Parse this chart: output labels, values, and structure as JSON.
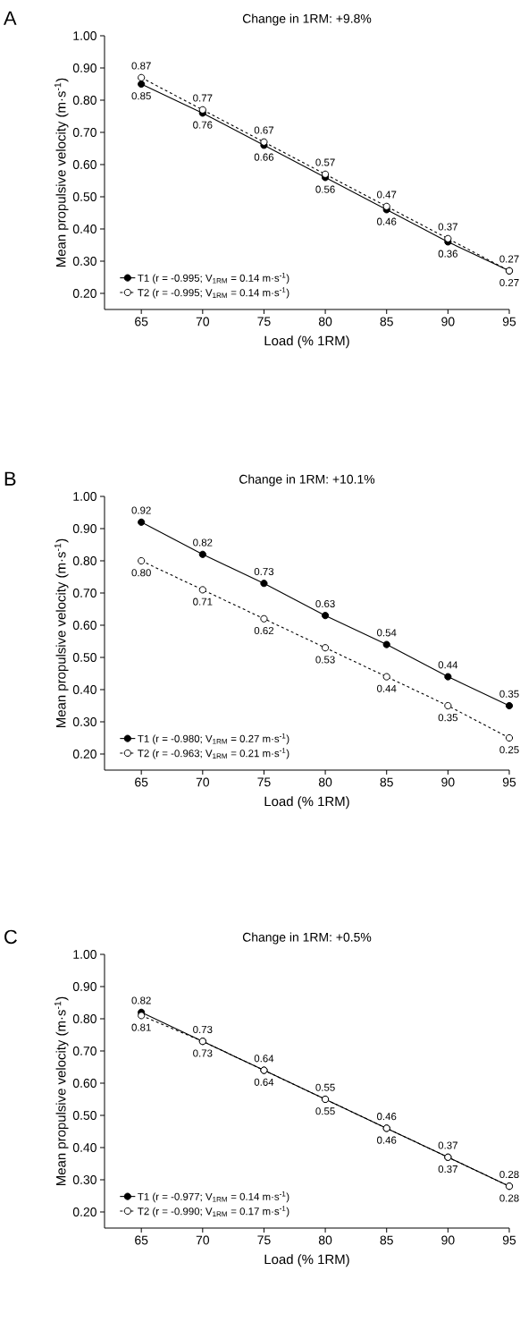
{
  "chart_data": [
    {
      "type": "line",
      "title": "Change in 1RM: +9.8%",
      "annotations": [
        "A"
      ],
      "xlabel": "Load (% 1RM)",
      "ylabel": "Mean propulsive velocity (m·s$^{-1}$)",
      "x": [
        65,
        70,
        75,
        80,
        85,
        90,
        95
      ],
      "xlim": [
        62,
        95
      ],
      "ylim": [
        0.15,
        1.0
      ],
      "xticks": [
        65,
        70,
        75,
        80,
        85,
        90,
        95
      ],
      "yticks": [
        {
          "value": 0.2,
          "label": "0.20"
        },
        {
          "value": 0.3,
          "label": "0.30"
        },
        {
          "value": 0.4,
          "label": "0.40"
        },
        {
          "value": 0.5,
          "label": "0.50"
        },
        {
          "value": 0.6,
          "label": "0.60"
        },
        {
          "value": 0.7,
          "label": "0.70"
        },
        {
          "value": 0.8,
          "label": "0.80"
        },
        {
          "value": 0.9,
          "label": "0.90"
        },
        {
          "value": 1.0,
          "label": "1.00"
        }
      ],
      "legend": "bottom left",
      "marker": "circle",
      "series": [
        {
          "name": "T1 (r = -0.995; V$_{1RM}$ = 0.14 m·s$^{-1}$)",
          "color": "#000000",
          "line_style": "solid",
          "values": [
            0.85,
            0.76,
            0.66,
            0.56,
            0.46,
            0.36,
            0.27
          ],
          "value_labels": [
            "0.85",
            "0.76",
            "0.66",
            "0.56",
            "0.46",
            "0.36",
            "0.27"
          ]
        },
        {
          "name": "T2 (r = -0.995; V$_{1RM}$ = 0.14 m·s$^{-1}$)",
          "color": "#000000",
          "line_style": "dashed",
          "values": [
            0.87,
            0.77,
            0.67,
            0.57,
            0.47,
            0.37,
            0.27
          ],
          "value_labels": [
            "0.87",
            "0.77",
            "0.67",
            "0.57",
            "0.47",
            "0.37",
            "0.27"
          ]
        }
      ]
    },
    {
      "type": "line",
      "title": "Change in 1RM: +10.1%",
      "annotations": [
        "B"
      ],
      "xlabel": "Load (% 1RM)",
      "ylabel": "Mean propulsive velocity (m·s$^{-1}$)",
      "x": [
        65,
        70,
        75,
        80,
        85,
        90,
        95
      ],
      "xlim": [
        62,
        95
      ],
      "ylim": [
        0.15,
        1.0
      ],
      "xticks": [
        65,
        70,
        75,
        80,
        85,
        90,
        95
      ],
      "yticks": [
        {
          "value": 0.2,
          "label": "0.20"
        },
        {
          "value": 0.3,
          "label": "0.30"
        },
        {
          "value": 0.4,
          "label": "0.40"
        },
        {
          "value": 0.5,
          "label": "0.50"
        },
        {
          "value": 0.6,
          "label": "0.60"
        },
        {
          "value": 0.7,
          "label": "0.70"
        },
        {
          "value": 0.8,
          "label": "0.80"
        },
        {
          "value": 0.9,
          "label": "0.90"
        },
        {
          "value": 1.0,
          "label": "1.00"
        }
      ],
      "legend": "bottom left",
      "marker": "circle",
      "series": [
        {
          "name": "T1 (r = -0.980; V$_{1RM}$ = 0.27 m·s$^{-1}$)",
          "color": "#000000",
          "line_style": "solid",
          "values": [
            0.92,
            0.82,
            0.73,
            0.63,
            0.54,
            0.44,
            0.35
          ],
          "value_labels": [
            "0.92",
            "0.82",
            "0.73",
            "0.63",
            "0.54",
            "0.44",
            "0.35"
          ]
        },
        {
          "name": "T2 (r = -0.963; V$_{1RM}$ = 0.21 m·s$^{-1}$)",
          "color": "#000000",
          "line_style": "dashed",
          "values": [
            0.8,
            0.71,
            0.62,
            0.53,
            0.44,
            0.35,
            0.25
          ],
          "value_labels": [
            "0.80",
            "0.71",
            "0.62",
            "0.53",
            "0.44",
            "0.35",
            "0.25"
          ]
        }
      ]
    },
    {
      "type": "line",
      "title": "Change in 1RM: +0.5%",
      "annotations": [
        "C"
      ],
      "xlabel": "Load (% 1RM)",
      "ylabel": "Mean propulsive velocity (m·s$^{-1}$)",
      "x": [
        65,
        70,
        75,
        80,
        85,
        90,
        95
      ],
      "xlim": [
        62,
        95
      ],
      "ylim": [
        0.15,
        1.0
      ],
      "xticks": [
        65,
        70,
        75,
        80,
        85,
        90,
        95
      ],
      "yticks": [
        {
          "value": 0.2,
          "label": "0.20"
        },
        {
          "value": 0.3,
          "label": "0.30"
        },
        {
          "value": 0.4,
          "label": "0.40"
        },
        {
          "value": 0.5,
          "label": "0.50"
        },
        {
          "value": 0.6,
          "label": "0.60"
        },
        {
          "value": 0.7,
          "label": "0.70"
        },
        {
          "value": 0.8,
          "label": "0.80"
        },
        {
          "value": 0.9,
          "label": "0.90"
        },
        {
          "value": 1.0,
          "label": "1.00"
        }
      ],
      "legend": "bottom left",
      "marker": "circle",
      "series": [
        {
          "name": "T1 (r = -0.977; V$_{1RM}$ = 0.14 m·s$^{-1}$)",
          "color": "#000000",
          "line_style": "solid",
          "values": [
            0.82,
            0.73,
            0.64,
            0.55,
            0.46,
            0.37,
            0.28
          ],
          "value_labels": [
            "0.82",
            "0.73",
            "0.64",
            "0.55",
            "0.46",
            "0.37",
            "0.28"
          ]
        },
        {
          "name": "T2 (r = -0.990; V$_{1RM}$ = 0.17 m·s$^{-1}$)",
          "color": "#000000",
          "line_style": "dashed",
          "values": [
            0.81,
            0.73,
            0.64,
            0.55,
            0.46,
            0.37,
            0.28
          ],
          "value_labels": [
            "0.81",
            "0.73",
            "0.64",
            "0.55",
            "0.46",
            "0.37",
            "0.28"
          ]
        }
      ]
    }
  ]
}
